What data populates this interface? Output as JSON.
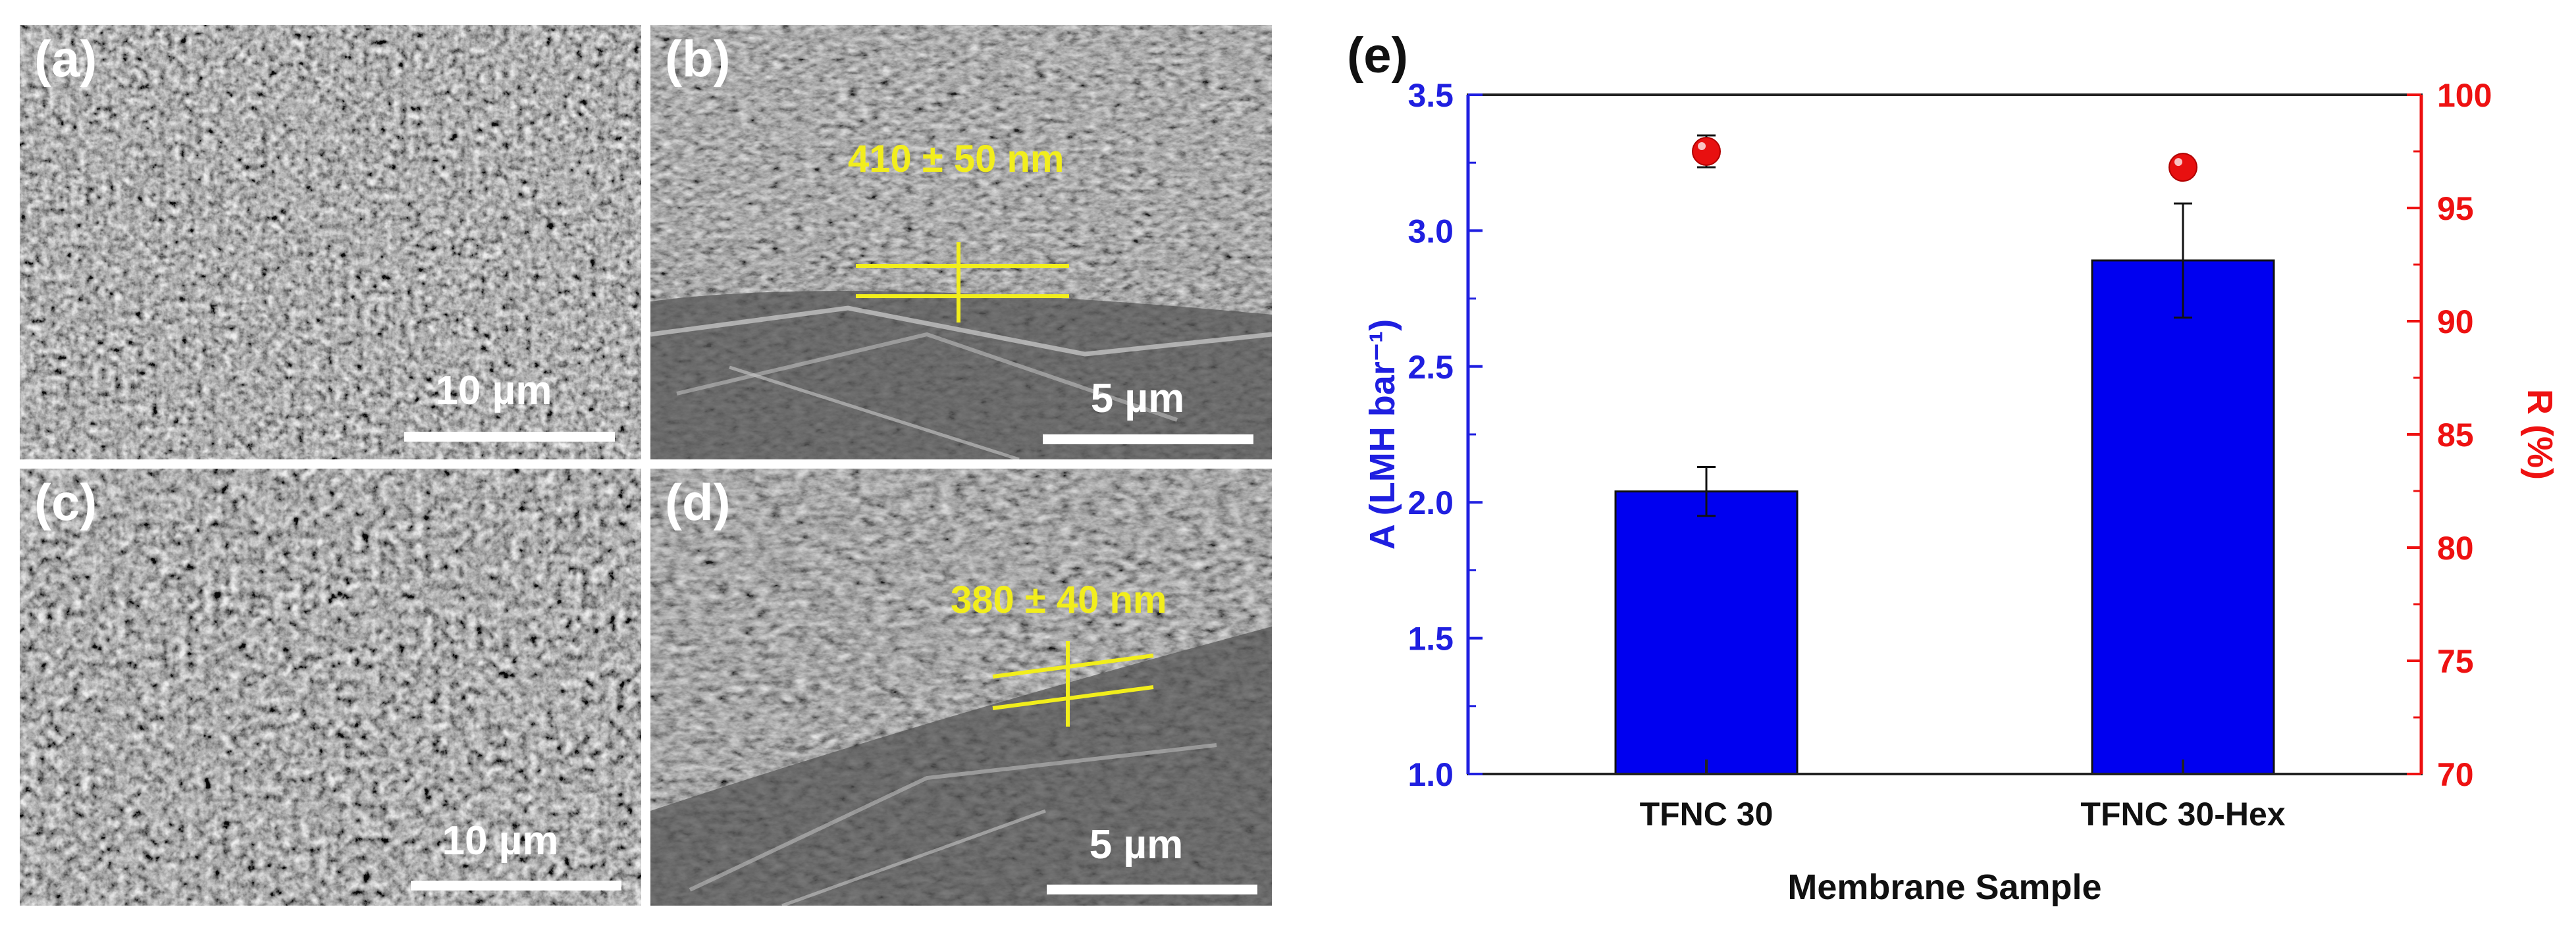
{
  "panels": {
    "a": {
      "label": "(a)",
      "scale_bar": "10 µm"
    },
    "b": {
      "label": "(b)",
      "scale_bar": "5 µm",
      "thickness": "410 ± 50 nm"
    },
    "c": {
      "label": "(c)",
      "scale_bar": "10 µm"
    },
    "d": {
      "label": "(d)",
      "scale_bar": "5 µm",
      "thickness": "380 ± 40 nm"
    }
  },
  "colors": {
    "bar_fill": "#0000f0",
    "left_axis": "#1f1fe0",
    "right_axis": "#ee1111",
    "marker": "#e81010",
    "yellow": "#f2ee1c",
    "sem_base": "#5d5d5d"
  },
  "chart_data": {
    "type": "bar",
    "panel_label": "(e)",
    "categories": [
      "TFNC 30",
      "TFNC 30-Hex"
    ],
    "xlabel": "Membrane Sample",
    "ylabel_left": "A (LMH bar⁻¹)",
    "ylabel_right": "R (%)",
    "ylim_left": [
      1.0,
      3.5
    ],
    "ylim_right": [
      70,
      100
    ],
    "yticks_left": [
      "1.0",
      "1.5",
      "2.0",
      "2.5",
      "3.0",
      "3.5"
    ],
    "yticks_right": [
      "70",
      "75",
      "80",
      "85",
      "90",
      "95",
      "100"
    ],
    "series": [
      {
        "axis": "left",
        "kind": "bar",
        "values": [
          2.04,
          2.89
        ],
        "errors": [
          0.09,
          0.21
        ]
      },
      {
        "axis": "right",
        "kind": "scatter",
        "values": [
          97.5,
          96.8
        ],
        "errors": [
          0.7,
          0
        ]
      }
    ],
    "grid": false,
    "legend": "none"
  }
}
